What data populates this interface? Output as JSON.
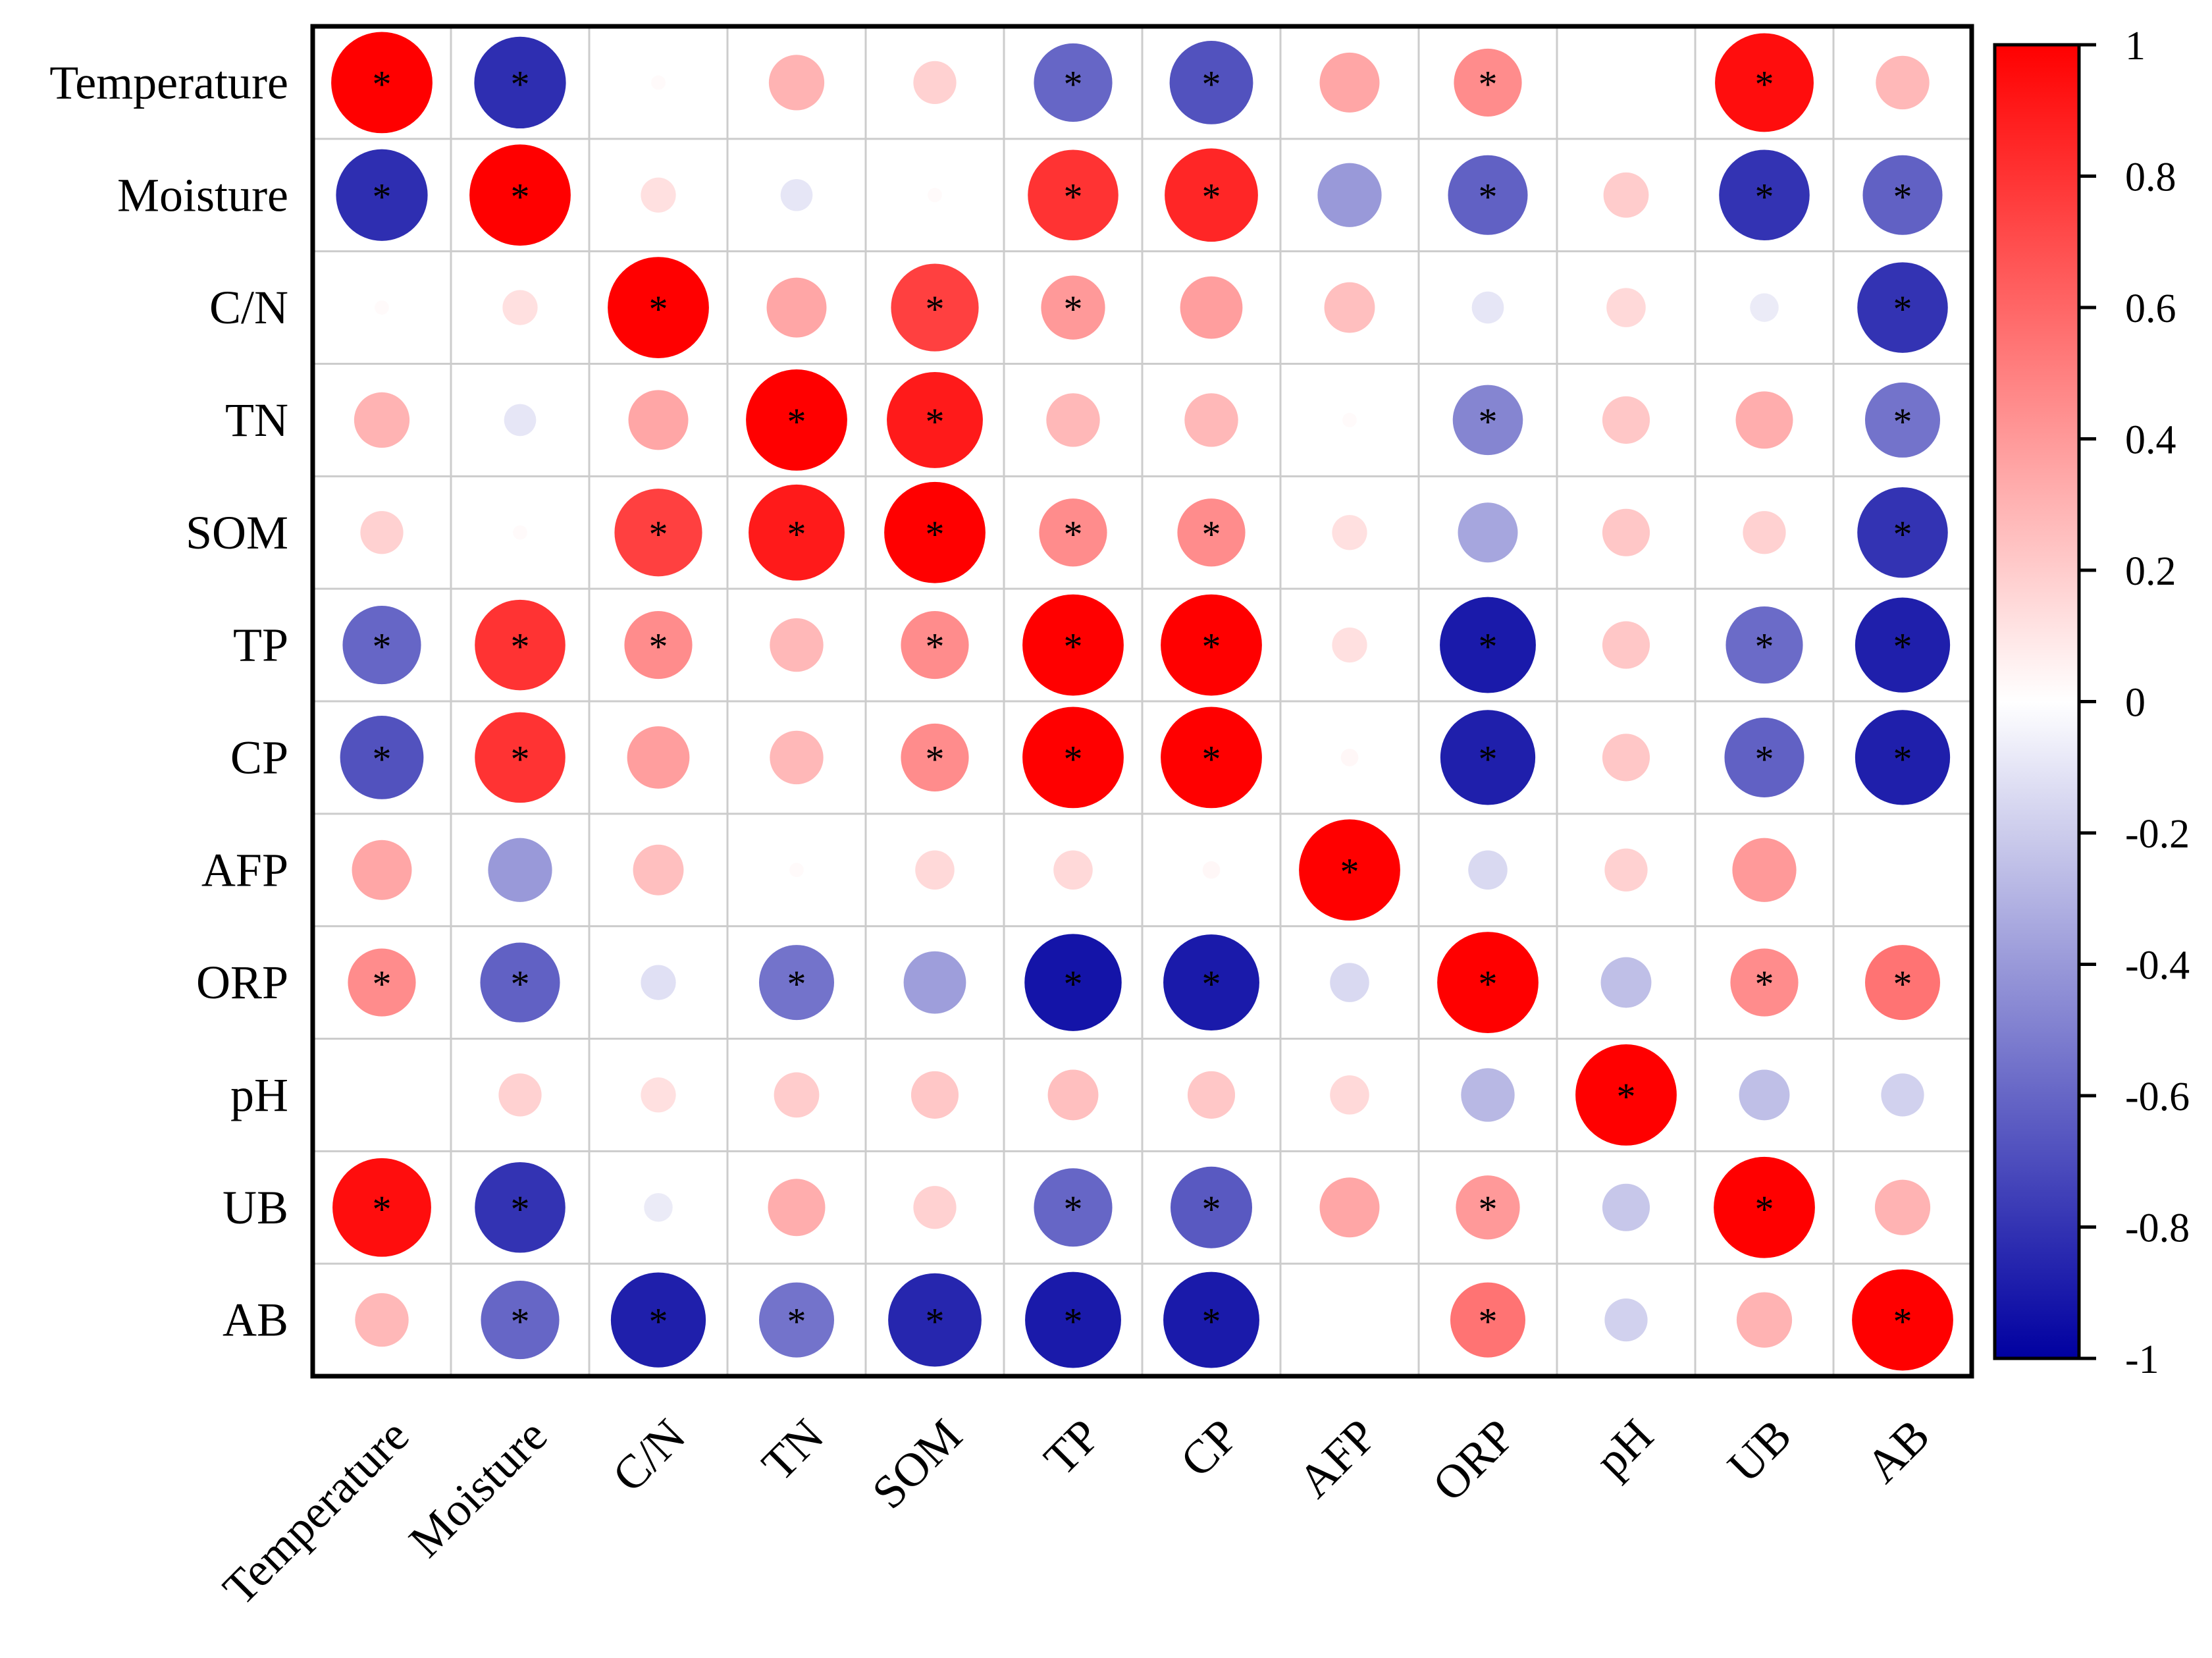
{
  "chart_data": {
    "type": "heatmap",
    "title": "",
    "variables": [
      "Temperature",
      "Moisture",
      "C/N",
      "TN",
      "SOM",
      "TP",
      "CP",
      "AFP",
      "ORP",
      "pH",
      "UB",
      "AB"
    ],
    "matrix": [
      [
        1.0,
        -0.82,
        0.02,
        0.3,
        0.18,
        -0.6,
        -0.68,
        0.35,
        0.45,
        0.0,
        0.95,
        0.28
      ],
      [
        -0.82,
        1.0,
        0.12,
        -0.1,
        0.02,
        0.8,
        0.85,
        -0.4,
        -0.62,
        0.2,
        -0.8,
        -0.62
      ],
      [
        0.02,
        0.12,
        1.0,
        0.35,
        0.75,
        0.4,
        0.38,
        0.25,
        -0.1,
        0.15,
        -0.08,
        -0.8
      ],
      [
        0.3,
        -0.1,
        0.35,
        1.0,
        0.9,
        0.28,
        0.28,
        0.02,
        -0.48,
        0.22,
        0.32,
        -0.55
      ],
      [
        0.18,
        0.02,
        0.75,
        0.9,
        1.0,
        0.45,
        0.45,
        0.12,
        -0.35,
        0.22,
        0.18,
        -0.8
      ],
      [
        -0.6,
        0.8,
        0.45,
        0.28,
        0.45,
        1.0,
        1.0,
        0.12,
        -0.9,
        0.22,
        -0.58,
        -0.88
      ],
      [
        -0.68,
        0.8,
        0.38,
        0.28,
        0.45,
        1.0,
        1.0,
        0.03,
        -0.88,
        0.22,
        -0.62,
        -0.88
      ],
      [
        0.35,
        -0.4,
        0.25,
        0.02,
        0.15,
        0.15,
        0.03,
        1.0,
        -0.15,
        0.18,
        0.4,
        0.0
      ],
      [
        0.45,
        -0.62,
        -0.12,
        -0.55,
        -0.38,
        -0.92,
        -0.9,
        -0.15,
        1.0,
        -0.25,
        0.45,
        0.55
      ],
      [
        0.0,
        0.18,
        0.12,
        0.2,
        0.22,
        0.25,
        0.22,
        0.15,
        -0.28,
        1.0,
        -0.25,
        -0.18
      ],
      [
        0.95,
        -0.8,
        -0.08,
        0.32,
        0.18,
        -0.6,
        -0.65,
        0.35,
        0.4,
        -0.22,
        1.0,
        0.3
      ],
      [
        0.28,
        -0.6,
        -0.88,
        -0.55,
        -0.85,
        -0.9,
        -0.9,
        0.0,
        0.55,
        -0.18,
        0.3,
        1.0
      ]
    ],
    "significance": [
      [
        1,
        1,
        0,
        0,
        0,
        1,
        1,
        0,
        1,
        0,
        1,
        0
      ],
      [
        1,
        1,
        0,
        0,
        0,
        1,
        1,
        0,
        1,
        0,
        1,
        1
      ],
      [
        0,
        0,
        1,
        0,
        1,
        1,
        0,
        0,
        0,
        0,
        0,
        1
      ],
      [
        0,
        0,
        0,
        1,
        1,
        0,
        0,
        0,
        1,
        0,
        0,
        1
      ],
      [
        0,
        0,
        1,
        1,
        1,
        1,
        1,
        0,
        0,
        0,
        0,
        1
      ],
      [
        1,
        1,
        1,
        0,
        1,
        1,
        1,
        0,
        1,
        0,
        1,
        1
      ],
      [
        1,
        1,
        0,
        0,
        1,
        1,
        1,
        0,
        1,
        0,
        1,
        1
      ],
      [
        0,
        0,
        0,
        0,
        0,
        0,
        0,
        1,
        0,
        0,
        0,
        0
      ],
      [
        1,
        1,
        0,
        1,
        0,
        1,
        1,
        0,
        1,
        0,
        1,
        1
      ],
      [
        0,
        0,
        0,
        0,
        0,
        0,
        0,
        0,
        0,
        1,
        0,
        0
      ],
      [
        1,
        1,
        0,
        0,
        0,
        1,
        1,
        0,
        1,
        0,
        1,
        0
      ],
      [
        0,
        1,
        1,
        1,
        1,
        1,
        1,
        0,
        1,
        0,
        0,
        1
      ]
    ],
    "significance_marker": "*",
    "colorbar": {
      "range": [
        -1,
        1
      ],
      "ticks": [
        1,
        0.8,
        0.6,
        0.4,
        0.2,
        0,
        -0.2,
        -0.4,
        -0.6,
        -0.8,
        -1
      ],
      "tick_labels": [
        "1",
        "0.8",
        "0.6",
        "0.4",
        "0.2",
        "0",
        "-0.2",
        "-0.4",
        "-0.6",
        "-0.8",
        "-1"
      ],
      "color_max": "#ff0000",
      "color_mid": "#ffffff",
      "color_min": "#0000a0"
    },
    "grid": true,
    "gridline_color": "#cccccc",
    "legend_position": "right"
  }
}
